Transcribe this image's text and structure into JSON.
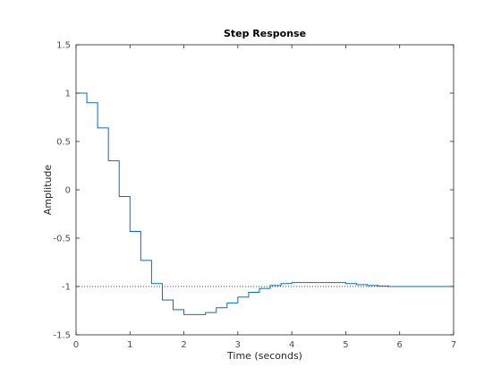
{
  "chart_data": {
    "type": "line",
    "title": "Step Response",
    "xlabel": "Time (seconds)",
    "ylabel": "Amplitude",
    "xlim": [
      0,
      7
    ],
    "ylim": [
      -1.5,
      1.5
    ],
    "xticks": [
      0,
      1,
      2,
      3,
      4,
      5,
      6,
      7
    ],
    "xtick_labels": [
      "0",
      "1",
      "2",
      "3",
      "4",
      "5",
      "6",
      "7"
    ],
    "yticks": [
      1.5,
      1,
      0.5,
      0,
      -0.5,
      -1,
      -1.5
    ],
    "ytick_labels": [
      "1.5",
      "1",
      "0.5",
      "0",
      "-0.5",
      "-1",
      "-1.5"
    ],
    "grid": false,
    "step_style": "zero-order-hold",
    "steady_state_value": -1,
    "series": [
      {
        "color": "#0072bd",
        "x": [
          0,
          0.2,
          0.4,
          0.6,
          0.8,
          1.0,
          1.2,
          1.4,
          1.6,
          1.8,
          2.0,
          2.2,
          2.4,
          2.6,
          2.8,
          3.0,
          3.2,
          3.4,
          3.6,
          3.8,
          4.0,
          4.2,
          4.4,
          4.6,
          4.8,
          5.0,
          5.2,
          5.4,
          5.6,
          5.8,
          6.0,
          6.2,
          6.4,
          6.6,
          6.8
        ],
        "y": [
          1.0,
          0.9,
          0.64,
          0.3,
          -0.07,
          -0.43,
          -0.73,
          -0.97,
          -1.14,
          -1.24,
          -1.29,
          -1.29,
          -1.27,
          -1.22,
          -1.17,
          -1.11,
          -1.06,
          -1.02,
          -0.99,
          -0.97,
          -0.96,
          -0.96,
          -0.96,
          -0.96,
          -0.96,
          -0.97,
          -0.98,
          -0.99,
          -0.995,
          -1.0,
          -1.0,
          -1.0,
          -1.0,
          -1.0,
          -1.0
        ],
        "x_end": 7.0
      }
    ],
    "axes_color": "#262626",
    "reference_line_color": "#000000"
  }
}
